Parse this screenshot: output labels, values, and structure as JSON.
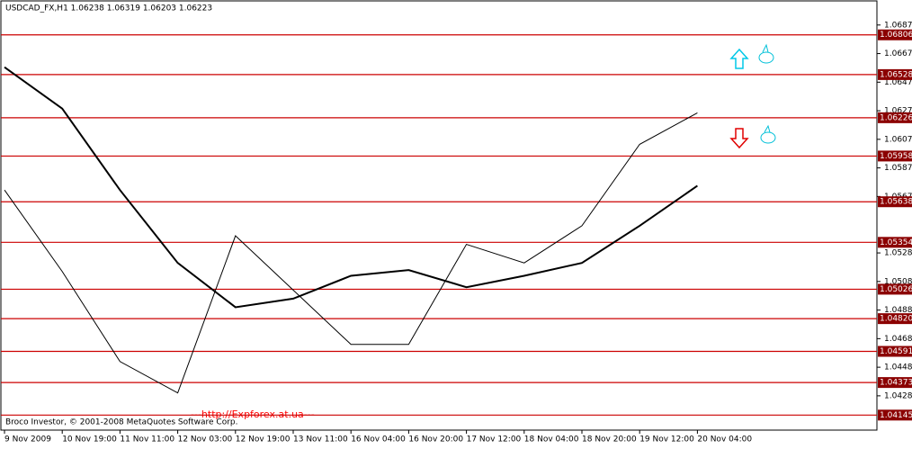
{
  "chart_data": {
    "type": "line",
    "title": "USDCAD_FX,H1  1.06238 1.06319 1.06203 1.06223",
    "footer": "Broco Investor, © 2001-2008 MetaQuotes Software Corp.",
    "watermark": "---http://Expforex.at.ua---",
    "categories": [
      "9 Nov 2009",
      "10 Nov 19:00",
      "11 Nov 11:00",
      "12 Nov 03:00",
      "12 Nov 19:00",
      "13 Nov 11:00",
      "16 Nov 04:00",
      "16 Nov 20:00",
      "17 Nov 12:00",
      "18 Nov 04:00",
      "18 Nov 20:00",
      "19 Nov 12:00",
      "20 Nov 04:00"
    ],
    "series": [
      {
        "color": "#000000",
        "width": 1,
        "values": [
          1.0572,
          1.0515,
          1.0452,
          1.043,
          1.054,
          1.0502,
          1.0464,
          1.0464,
          1.0534,
          1.0521,
          1.0547,
          1.0604,
          1.0626
        ]
      },
      {
        "color": "#000000",
        "width": 2,
        "values": [
          1.0658,
          1.0629,
          1.0572,
          1.0521,
          1.049,
          1.0496,
          1.0512,
          1.0516,
          1.0504,
          1.0512,
          1.0521,
          1.0547,
          1.0575
        ]
      }
    ],
    "levels": [
      1.06806,
      1.06528,
      1.06226,
      1.05958,
      1.05638,
      1.05354,
      1.05026,
      {
        "value": 1.0482,
        "label": "1.04820"
      },
      1.04591,
      1.04373,
      1.04145
    ],
    "level_color": "#cc0000",
    "ylim": [
      1.0404,
      1.0705
    ],
    "yticks": [
      1.06875,
      1.06675,
      1.06475,
      1.06275,
      1.06075,
      1.05875,
      1.05675,
      {
        "value": 1.0528,
        "label": "1.05280"
      },
      {
        "value": 1.0508,
        "label": "1.05080"
      },
      {
        "value": 1.0488,
        "label": "1.04880"
      },
      {
        "value": 1.0468,
        "label": "1.04680"
      },
      {
        "value": 1.0448,
        "label": "1.04480"
      },
      {
        "value": 1.0428,
        "label": "1.04280"
      }
    ]
  }
}
